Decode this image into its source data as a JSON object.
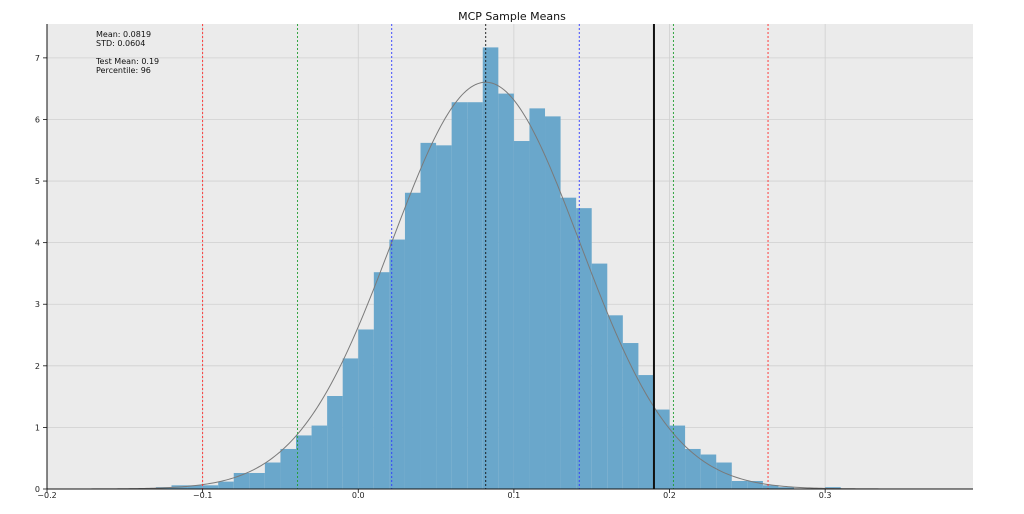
{
  "chart_data": {
    "type": "bar",
    "title": "MCP Sample Means",
    "xlabel": "",
    "ylabel": "",
    "xlim": [
      -0.2,
      0.395
    ],
    "ylim": [
      0,
      7.55
    ],
    "grid": true,
    "x_ticks": [
      -0.2,
      -0.1,
      0.0,
      0.1,
      0.2,
      0.3
    ],
    "x_tick_labels": [
      "−0.2",
      "−0.1",
      "0.0",
      "0.1",
      "0.2",
      "0.3"
    ],
    "y_ticks": [
      0,
      1,
      2,
      3,
      4,
      5,
      6,
      7
    ],
    "y_tick_labels": [
      "0",
      "1",
      "2",
      "3",
      "4",
      "5",
      "6",
      "7"
    ],
    "bins": [
      {
        "x0": -0.13,
        "x1": -0.12,
        "value": 0.03
      },
      {
        "x0": -0.12,
        "x1": -0.11,
        "value": 0.06
      },
      {
        "x0": -0.11,
        "x1": -0.1,
        "value": 0.06
      },
      {
        "x0": -0.1,
        "x1": -0.09,
        "value": 0.06
      },
      {
        "x0": -0.09,
        "x1": -0.08,
        "value": 0.12
      },
      {
        "x0": -0.08,
        "x1": -0.07,
        "value": 0.26
      },
      {
        "x0": -0.07,
        "x1": -0.06,
        "value": 0.26
      },
      {
        "x0": -0.06,
        "x1": -0.05,
        "value": 0.43
      },
      {
        "x0": -0.05,
        "x1": -0.04,
        "value": 0.65
      },
      {
        "x0": -0.04,
        "x1": -0.03,
        "value": 0.87
      },
      {
        "x0": -0.03,
        "x1": -0.02,
        "value": 1.03
      },
      {
        "x0": -0.02,
        "x1": -0.01,
        "value": 1.51
      },
      {
        "x0": -0.01,
        "x1": 0.0,
        "value": 2.12
      },
      {
        "x0": 0.0,
        "x1": 0.01,
        "value": 2.59
      },
      {
        "x0": 0.01,
        "x1": 0.02,
        "value": 3.52
      },
      {
        "x0": 0.02,
        "x1": 0.03,
        "value": 4.05
      },
      {
        "x0": 0.03,
        "x1": 0.04,
        "value": 4.81
      },
      {
        "x0": 0.04,
        "x1": 0.05,
        "value": 5.62
      },
      {
        "x0": 0.05,
        "x1": 0.06,
        "value": 5.58
      },
      {
        "x0": 0.06,
        "x1": 0.07,
        "value": 6.28
      },
      {
        "x0": 0.07,
        "x1": 0.08,
        "value": 6.28
      },
      {
        "x0": 0.08,
        "x1": 0.09,
        "value": 7.17
      },
      {
        "x0": 0.09,
        "x1": 0.1,
        "value": 6.42
      },
      {
        "x0": 0.1,
        "x1": 0.11,
        "value": 5.65
      },
      {
        "x0": 0.11,
        "x1": 0.12,
        "value": 6.18
      },
      {
        "x0": 0.12,
        "x1": 0.13,
        "value": 6.05
      },
      {
        "x0": 0.13,
        "x1": 0.14,
        "value": 4.73
      },
      {
        "x0": 0.14,
        "x1": 0.15,
        "value": 4.56
      },
      {
        "x0": 0.15,
        "x1": 0.16,
        "value": 3.66
      },
      {
        "x0": 0.16,
        "x1": 0.17,
        "value": 2.82
      },
      {
        "x0": 0.17,
        "x1": 0.18,
        "value": 2.37
      },
      {
        "x0": 0.18,
        "x1": 0.19,
        "value": 1.85
      },
      {
        "x0": 0.19,
        "x1": 0.2,
        "value": 1.29
      },
      {
        "x0": 0.2,
        "x1": 0.21,
        "value": 1.03
      },
      {
        "x0": 0.21,
        "x1": 0.22,
        "value": 0.65
      },
      {
        "x0": 0.22,
        "x1": 0.23,
        "value": 0.56
      },
      {
        "x0": 0.23,
        "x1": 0.24,
        "value": 0.43
      },
      {
        "x0": 0.24,
        "x1": 0.25,
        "value": 0.13
      },
      {
        "x0": 0.25,
        "x1": 0.26,
        "value": 0.13
      },
      {
        "x0": 0.26,
        "x1": 0.27,
        "value": 0.06
      },
      {
        "x0": 0.27,
        "x1": 0.28,
        "value": 0.03
      },
      {
        "x0": 0.3,
        "x1": 0.31,
        "value": 0.03
      }
    ],
    "bar_color": "#6aa7cb",
    "normal_curve": {
      "mean": 0.0819,
      "std": 0.0604,
      "x_range": [
        -0.175,
        0.365
      ],
      "color": "#7a7a7a"
    },
    "vertical_lines": [
      {
        "x": -0.1,
        "color": "#ff2a2a",
        "style": "dashed"
      },
      {
        "x": -0.039,
        "color": "#1f9d2f",
        "style": "dashed"
      },
      {
        "x": 0.0215,
        "color": "#2f3cff",
        "style": "dashed"
      },
      {
        "x": 0.0819,
        "color": "#111111",
        "style": "dashed"
      },
      {
        "x": 0.142,
        "color": "#2f3cff",
        "style": "dashed"
      },
      {
        "x": 0.19,
        "color": "#111111",
        "style": "solid"
      },
      {
        "x": 0.2025,
        "color": "#1f9d2f",
        "style": "dashed"
      },
      {
        "x": 0.2633,
        "color": "#ff2a2a",
        "style": "dashed"
      }
    ]
  },
  "annotation": {
    "mean": "Mean: 0.0819",
    "std": "STD: 0.0604",
    "test_mean": "Test Mean: 0.19",
    "percentile": "Percentile: 96"
  },
  "colors": {
    "plot_bg": "#ebebeb",
    "grid": "#d0d0d0",
    "axis": "#111111"
  }
}
